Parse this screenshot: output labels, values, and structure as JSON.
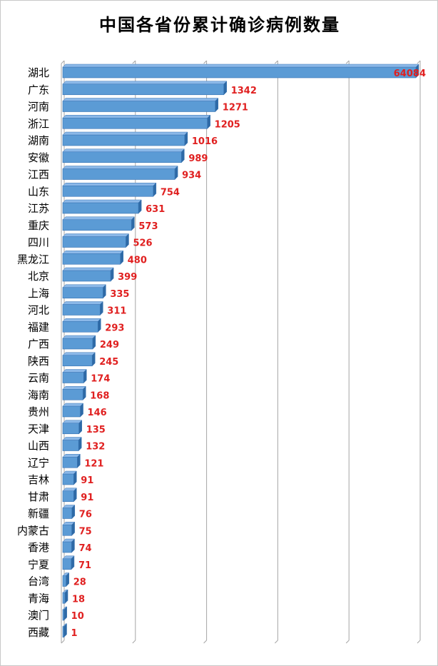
{
  "chart_data": {
    "type": "bar",
    "orientation": "horizontal",
    "title": "中国各省份累计确诊病例数量",
    "xlabel": "",
    "ylabel": "",
    "grid": true,
    "legend": "none",
    "categories": [
      "湖北",
      "广东",
      "河南",
      "浙江",
      "湖南",
      "安徽",
      "江西",
      "山东",
      "江苏",
      "重庆",
      "四川",
      "黑龙江",
      "北京",
      "上海",
      "河北",
      "福建",
      "广西",
      "陕西",
      "云南",
      "海南",
      "贵州",
      "天津",
      "山西",
      "辽宁",
      "吉林",
      "甘肃",
      "新疆",
      "内蒙古",
      "香港",
      "宁夏",
      "台湾",
      "青海",
      "澳门",
      "西藏"
    ],
    "values": [
      64084,
      1342,
      1271,
      1205,
      1016,
      989,
      934,
      754,
      631,
      573,
      526,
      480,
      399,
      335,
      311,
      293,
      249,
      245,
      174,
      168,
      146,
      135,
      132,
      121,
      91,
      91,
      76,
      75,
      74,
      71,
      28,
      18,
      10,
      1
    ],
    "data_labels": [
      "64084",
      "1342",
      "1271",
      "1205",
      "1016",
      "989",
      "934",
      "754",
      "631",
      "573",
      "526",
      "480",
      "399",
      "335",
      "311",
      "293",
      "249",
      "245",
      "174",
      "168",
      "146",
      "135",
      "132",
      "121",
      "91",
      "91",
      "76",
      "75",
      "74",
      "71",
      "28",
      "18",
      "10",
      "1"
    ],
    "colors": {
      "bar_face": "#5b9bd5",
      "bar_top": "#8bb8e8",
      "bar_side": "#2e6aa6",
      "bar_edge": "#3a74b3",
      "data_label": "#e02020",
      "grid": "#a6a6a6"
    }
  }
}
